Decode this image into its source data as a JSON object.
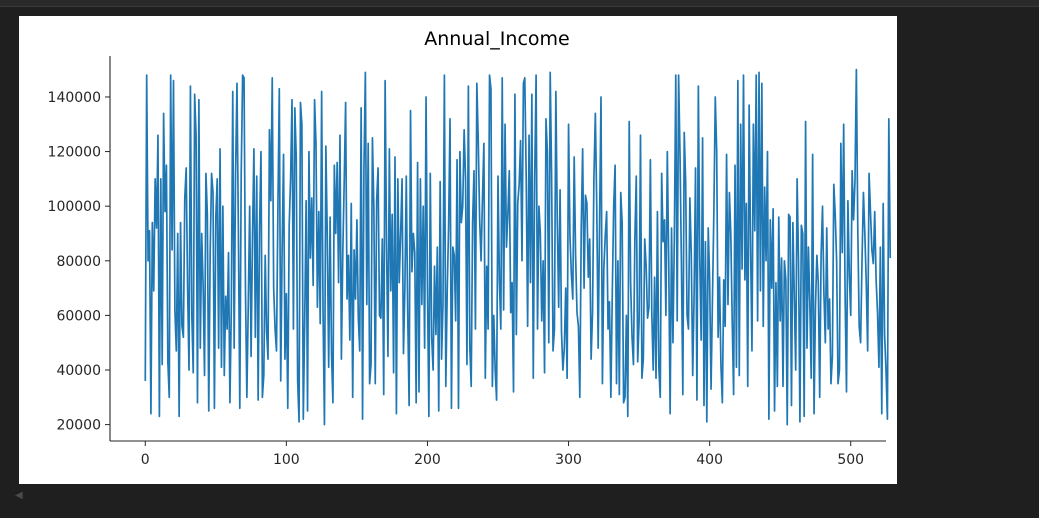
{
  "colors": {
    "series": "#1f77b4",
    "axis": "#262626",
    "background": "#ffffff",
    "page": "#1f1f1f"
  },
  "icons": {
    "scroll_left": "scroll-left-arrow-icon"
  },
  "chart_data": {
    "type": "line",
    "title": "Annual_Income",
    "xlabel": "",
    "ylabel": "",
    "xlim": [
      -25,
      525
    ],
    "ylim": [
      14000,
      155000
    ],
    "xticks": [
      0,
      100,
      200,
      300,
      400,
      500
    ],
    "yticks": [
      20000,
      40000,
      60000,
      80000,
      100000,
      120000,
      140000
    ],
    "xtick_labels": [
      "0",
      "100",
      "200",
      "300",
      "400",
      "500"
    ],
    "ytick_labels": [
      "20000",
      "40000",
      "60000",
      "80000",
      "100000",
      "120000",
      "140000"
    ],
    "grid": false,
    "legend": "none",
    "spines": "left-bottom",
    "series": [
      {
        "color": "#1f77b4",
        "x_start": 0,
        "x_step": 1,
        "values": [
          36000,
          148000,
          80000,
          91000,
          24000,
          94000,
          69000,
          110000,
          92000,
          126000,
          23000,
          110000,
          42000,
          134000,
          98000,
          115000,
          43000,
          30000,
          148000,
          84000,
          146000,
          62000,
          47000,
          90000,
          23000,
          94000,
          56000,
          52000,
          103000,
          114000,
          70000,
          40000,
          144000,
          60000,
          39000,
          141000,
          126000,
          28000,
          139000,
          48000,
          90000,
          71000,
          38000,
          112000,
          97000,
          25000,
          83000,
          112000,
          105000,
          26000,
          96000,
          110000,
          48000,
          121000,
          41000,
          100000,
          38000,
          67000,
          55000,
          83000,
          28000,
          63000,
          142000,
          48000,
          112000,
          145000,
          91000,
          26000,
          112000,
          148000,
          147000,
          70000,
          30000,
          64000,
          100000,
          45000,
          89000,
          121000,
          52000,
          111000,
          29000,
          92000,
          120000,
          30000,
          38000,
          82000,
          54000,
          44000,
          128000,
          102000,
          147000,
          70000,
          55000,
          47000,
          99000,
          143000,
          36000,
          84000,
          119000,
          44000,
          68000,
          26000,
          93000,
          110000,
          139000,
          55000,
          136000,
          118000,
          36000,
          21000,
          138000,
          130000,
          22000,
          58000,
          102000,
          25000,
          120000,
          81000,
          103000,
          71000,
          139000,
          123000,
          63000,
          98000,
          57000,
          142000,
          61000,
          20000,
          122000,
          89000,
          41000,
          96000,
          46000,
          28000,
          115000,
          90000,
          116000,
          72000,
          126000,
          44000,
          83000,
          109000,
          138000,
          66000,
          82000,
          51000,
          101000,
          30000,
          84000,
          66000,
          95000,
          59000,
          47000,
          136000,
          22000,
          114000,
          149000,
          64000,
          123000,
          35000,
          42000,
          125000,
          100000,
          35000,
          102000,
          114000,
          60000,
          59000,
          88000,
          31000,
          146000,
          86000,
          45000,
          121000,
          69000,
          97000,
          39000,
          118000,
          24000,
          110000,
          72000,
          90000,
          110000,
          46000,
          70000,
          111000,
          61000,
          27000,
          135000,
          76000,
          90000,
          83000,
          28000,
          116000,
          32000,
          110000,
          64000,
          100000,
          48000,
          140000,
          71000,
          23000,
          112000,
          52000,
          40000,
          78000,
          53000,
          85000,
          25000,
          109000,
          44000,
          64000,
          148000,
          34000,
          69000,
          93000,
          132000,
          26000,
          85000,
          82000,
          58000,
          117000,
          26000,
          120000,
          94000,
          100000,
          128000,
          110000,
          42000,
          144000,
          49000,
          34000,
          94000,
          113000,
          55000,
          145000,
          124000,
          95000,
          80000,
          103000,
          123000,
          37000,
          78000,
          55000,
          148000,
          143000,
          34000,
          60000,
          40000,
          29000,
          111000,
          73000,
          55000,
          147000,
          62000,
          130000,
          85000,
          97000,
          113000,
          61000,
          72000,
          32000,
          141000,
          53000,
          101000,
          108000,
          124000,
          80000,
          145000,
          147000,
          110000,
          56000,
          126000,
          72000,
          141000,
          37000,
          110000,
          148000,
          55000,
          100000,
          90000,
          58000,
          80000,
          39000,
          132000,
          120000,
          50000,
          149000,
          111000,
          47000,
          55000,
          142000,
          95000,
          63000,
          106000,
          54000,
          40000,
          48000,
          70000,
          37000,
          130000,
          89000,
          75000,
          66000,
          118000,
          82000,
          61000,
          56000,
          30000,
          92000,
          121000,
          70000,
          104000,
          101000,
          74000,
          88000,
          44000,
          61000,
          111000,
          134000,
          100000,
          48000,
          95000,
          140000,
          35000,
          77000,
          89000,
          98000,
          55000,
          65000,
          30000,
          68000,
          100000,
          115000,
          35000,
          80000,
          31000,
          105000,
          94000,
          28000,
          30000,
          60000,
          23000,
          131000,
          72000,
          52000,
          42000,
          88000,
          111000,
          43000,
          58000,
          126000,
          37000,
          44000,
          88000,
          78000,
          59000,
          63000,
          117000,
          61000,
          40000,
          74000,
          37000,
          98000,
          41000,
          30000,
          112000,
          87000,
          95000,
          60000,
          120000,
          80000,
          24000,
          92000,
          50000,
          89000,
          148000,
          58000,
          148000,
          119000,
          79000,
          31000,
          127000,
          109000,
          60000,
          55000,
          103000,
          82000,
          38000,
          68000,
          114000,
          29000,
          144000,
          81000,
          51000,
          125000,
          27000,
          87000,
          21000,
          92000,
          73000,
          33000,
          66000,
          98000,
          140000,
          120000,
          52000,
          74000,
          42000,
          28000,
          73000,
          56000,
          119000,
          64000,
          105000,
          90000,
          58000,
          31000,
          115000,
          41000,
          146000,
          38000,
          130000,
          77000,
          148000,
          73000,
          101000,
          34000,
          137000,
          86000,
          47000,
          130000,
          91000,
          148000,
          58000,
          149000,
          69000,
          145000,
          56000,
          107000,
          80000,
          120000,
          22000,
          95000,
          70000,
          99000,
          25000,
          72000,
          34000,
          96000,
          58000,
          81000,
          34000,
          80000,
          73000,
          20000,
          97000,
          96000,
          27000,
          94000,
          67000,
          40000,
          110000,
          80000,
          21000,
          93000,
          90000,
          23000,
          131000,
          48000,
          85000,
          65000,
          37000,
          119000,
          24000,
          63000,
          82000,
          72000,
          30000,
          82000,
          100000,
          68000,
          50000,
          92000,
          55000,
          66000,
          35000,
          45000,
          108000,
          97000,
          80000,
          35000,
          40000,
          123000,
          83000,
          130000,
          68000,
          32000,
          102000,
          75000,
          60000,
          113000,
          95000,
          109000,
          150000,
          92000,
          56000,
          50000,
          80000,
          105000,
          90000,
          72000,
          47000,
          112000,
          98000,
          84000,
          79000,
          98000,
          73000,
          61000,
          41000,
          85000,
          24000,
          101000,
          53000,
          40000,
          22000,
          132000,
          81000
        ]
      }
    ]
  }
}
